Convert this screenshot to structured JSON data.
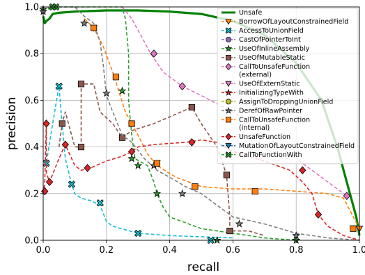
{
  "chart_data": {
    "type": "line",
    "xlabel": "recall",
    "ylabel": "precision",
    "xlim": [
      0,
      1
    ],
    "ylim": [
      0,
      1
    ],
    "x_ticks": [
      "0.0",
      "0.2",
      "0.4",
      "0.6",
      "0.8",
      "1.0"
    ],
    "y_ticks": [
      "0.0",
      "0.2",
      "0.4",
      "0.6",
      "0.8",
      "1.0"
    ],
    "grid": true,
    "legend_placement": "top-right",
    "series": [
      {
        "name": "Unsafe",
        "color": "#008000",
        "marker": "none",
        "dash": "solid",
        "points": [
          [
            0,
            0.96
          ],
          [
            0.005,
            0.93
          ],
          [
            0.01,
            0.94
          ],
          [
            0.02,
            0.95
          ],
          [
            0.03,
            0.97
          ],
          [
            0.05,
            0.975
          ],
          [
            0.1,
            0.98
          ],
          [
            0.2,
            0.985
          ],
          [
            0.3,
            0.985
          ],
          [
            0.4,
            0.98
          ],
          [
            0.5,
            0.97
          ],
          [
            0.6,
            0.94
          ],
          [
            0.7,
            0.88
          ],
          [
            0.8,
            0.76
          ],
          [
            0.88,
            0.6
          ],
          [
            0.93,
            0.4
          ],
          [
            0.96,
            0.25
          ],
          [
            0.98,
            0.15
          ],
          [
            0.99,
            0.1
          ],
          [
            1.0,
            0.02
          ]
        ]
      },
      {
        "name": "BorrowOfLayoutConstrainedField",
        "color": "#ff7f0e",
        "marker": "triangle-down",
        "dash": "dashed",
        "points": [
          [
            0.13,
            0.95
          ],
          [
            0.16,
            0.91
          ],
          [
            0.19,
            0.83
          ],
          [
            0.22,
            0.72
          ],
          [
            0.26,
            0.55
          ],
          [
            0.3,
            0.45
          ],
          [
            0.33,
            0.37
          ],
          [
            0.36,
            0.32
          ],
          [
            0.42,
            0.27
          ],
          [
            0.5,
            0.23
          ],
          [
            0.6,
            0.22
          ],
          [
            0.7,
            0.22
          ],
          [
            0.8,
            0.21
          ],
          [
            0.9,
            0.2
          ],
          [
            0.95,
            0.18
          ],
          [
            1.0,
            0.05
          ]
        ],
        "markers": [
          [
            0.16,
            0.91
          ],
          [
            0.36,
            0.33
          ],
          [
            1.0,
            0.05
          ]
        ]
      },
      {
        "name": "AccessToUnionField",
        "color": "#17becf",
        "marker": "x",
        "dash": "dashed",
        "points": [
          [
            0.0,
            0.32
          ],
          [
            0.01,
            0.33
          ],
          [
            0.03,
            0.5
          ],
          [
            0.05,
            0.66
          ],
          [
            0.06,
            0.5
          ],
          [
            0.07,
            0.35
          ],
          [
            0.09,
            0.24
          ],
          [
            0.1,
            0.2
          ],
          [
            0.12,
            0.18
          ],
          [
            0.15,
            0.17
          ],
          [
            0.18,
            0.15
          ],
          [
            0.2,
            0.08
          ],
          [
            0.22,
            0.06
          ],
          [
            0.3,
            0.03
          ],
          [
            0.4,
            0.02
          ],
          [
            0.6,
            0.01
          ]
        ],
        "markers": [
          [
            0.01,
            0.33
          ],
          [
            0.05,
            0.66
          ],
          [
            0.09,
            0.24
          ],
          [
            0.18,
            0.16
          ],
          [
            0.3,
            0.03
          ],
          [
            0.53,
            0.0
          ]
        ]
      },
      {
        "name": "CastOfPointerToInt",
        "color": "#9467bd",
        "marker": "circle",
        "dash": "dashed",
        "points": [],
        "markers": []
      },
      {
        "name": "UseOfInlineAssembly",
        "color": "#2ca02c",
        "marker": "star",
        "dash": "dashed",
        "points": [
          [
            0.0,
            0.98
          ],
          [
            0.03,
            1.0
          ],
          [
            0.1,
            1.0
          ],
          [
            0.2,
            1.0
          ],
          [
            0.25,
            1.0
          ],
          [
            0.26,
            0.95
          ],
          [
            0.27,
            0.8
          ],
          [
            0.27,
            0.6
          ],
          [
            0.28,
            0.45
          ],
          [
            0.29,
            0.35
          ],
          [
            0.33,
            0.32
          ],
          [
            0.35,
            0.25
          ],
          [
            0.36,
            0.2
          ],
          [
            0.38,
            0.14
          ],
          [
            0.4,
            0.1
          ],
          [
            0.5,
            0.05
          ],
          [
            0.7,
            0.01
          ],
          [
            0.8,
            0.0
          ]
        ],
        "markers": [
          [
            0.0,
            0.99
          ],
          [
            0.25,
            0.64
          ],
          [
            0.28,
            0.35
          ],
          [
            0.3,
            0.32
          ],
          [
            0.36,
            0.2
          ],
          [
            0.55,
            0.0
          ],
          [
            0.8,
            0.0
          ]
        ]
      },
      {
        "name": "UseOfMutableStatic",
        "color": "#8c564b",
        "marker": "square",
        "dash": "dashed",
        "points": [
          [
            0.05,
            0.4
          ],
          [
            0.06,
            0.5
          ],
          [
            0.07,
            0.55
          ],
          [
            0.1,
            0.4
          ],
          [
            0.12,
            0.4
          ],
          [
            0.12,
            0.67
          ],
          [
            0.16,
            0.67
          ],
          [
            0.18,
            0.55
          ],
          [
            0.22,
            0.5
          ],
          [
            0.25,
            0.44
          ],
          [
            0.28,
            0.47
          ],
          [
            0.35,
            0.5
          ],
          [
            0.47,
            0.57
          ],
          [
            0.5,
            0.5
          ],
          [
            0.55,
            0.4
          ],
          [
            0.58,
            0.28
          ],
          [
            0.59,
            0.1
          ],
          [
            0.59,
            0.04
          ],
          [
            0.65,
            0.04
          ],
          [
            0.7,
            0.02
          ]
        ],
        "markers": [
          [
            0.06,
            0.5
          ],
          [
            0.12,
            0.4
          ],
          [
            0.12,
            0.67
          ],
          [
            0.25,
            0.44
          ],
          [
            0.47,
            0.57
          ],
          [
            0.58,
            0.28
          ],
          [
            0.59,
            0.04
          ]
        ]
      },
      {
        "name": "CallToUnsafeFunction (external)",
        "color": "#e377c2",
        "marker": "diamond",
        "dash": "dashed",
        "points": [
          [
            0.25,
            1.0
          ],
          [
            0.28,
            0.95
          ],
          [
            0.32,
            0.85
          ],
          [
            0.34,
            0.8
          ],
          [
            0.38,
            0.72
          ],
          [
            0.44,
            0.66
          ],
          [
            0.5,
            0.62
          ],
          [
            0.6,
            0.55
          ],
          [
            0.7,
            0.45
          ],
          [
            0.8,
            0.35
          ],
          [
            0.9,
            0.25
          ],
          [
            0.96,
            0.19
          ]
        ],
        "markers": [
          [
            0.35,
            0.8
          ],
          [
            0.44,
            0.66
          ],
          [
            0.96,
            0.19
          ]
        ]
      },
      {
        "name": "UseOfExternStatic",
        "color": "#e377c2",
        "marker": "triangle-down-pink",
        "dash": "dashed",
        "points": [],
        "markers": []
      },
      {
        "name": "InitializingTypeWith",
        "color": "#d62728",
        "marker": "star-red",
        "dash": "dashed",
        "points": [],
        "markers": []
      },
      {
        "name": "AssignToDroppingUnionField",
        "color": "#bcbd22",
        "marker": "circle-yellow",
        "dash": "dashed",
        "points": [],
        "markers": []
      },
      {
        "name": "DerefOfRawPointer",
        "color": "#7f7f7f",
        "marker": "star",
        "dash": "dashed",
        "points": [
          [
            0.0,
            0.98
          ],
          [
            0.02,
            1.0
          ],
          [
            0.1,
            1.0
          ],
          [
            0.13,
            0.96
          ],
          [
            0.16,
            0.93
          ],
          [
            0.18,
            0.85
          ],
          [
            0.19,
            0.75
          ],
          [
            0.2,
            0.62
          ],
          [
            0.22,
            0.55
          ],
          [
            0.25,
            0.45
          ],
          [
            0.28,
            0.42
          ],
          [
            0.32,
            0.35
          ],
          [
            0.36,
            0.3
          ],
          [
            0.4,
            0.27
          ],
          [
            0.45,
            0.23
          ],
          [
            0.5,
            0.2
          ],
          [
            0.55,
            0.15
          ],
          [
            0.6,
            0.1
          ],
          [
            0.7,
            0.07
          ],
          [
            0.8,
            0.03
          ],
          [
            0.9,
            0.01
          ],
          [
            1.0,
            0.0
          ]
        ],
        "markers": [
          [
            0.0,
            0.98
          ],
          [
            0.13,
            0.93
          ],
          [
            0.2,
            0.63
          ],
          [
            0.35,
            0.32
          ],
          [
            0.44,
            0.2
          ],
          [
            0.62,
            0.07
          ],
          [
            0.8,
            0.02
          ]
        ]
      },
      {
        "name": "CallToUnsafeFunction (internal)",
        "color": "#ff7f0e",
        "marker": "square-orange",
        "dash": "dashed",
        "points": [],
        "markers": [
          [
            0.16,
            0.91
          ],
          [
            0.23,
            0.7
          ],
          [
            0.28,
            0.5
          ],
          [
            0.36,
            0.33
          ],
          [
            0.48,
            0.23
          ],
          [
            0.67,
            0.21
          ],
          [
            0.98,
            0.05
          ]
        ]
      },
      {
        "name": "UnsafeFunction",
        "color": "#d62728",
        "marker": "diamond-red",
        "dash": "dashed",
        "points": [
          [
            0.0,
            0.2
          ],
          [
            0.005,
            0.25
          ],
          [
            0.01,
            0.5
          ],
          [
            0.01,
            0.29
          ],
          [
            0.02,
            0.25
          ],
          [
            0.05,
            0.35
          ],
          [
            0.07,
            0.41
          ],
          [
            0.1,
            0.32
          ],
          [
            0.12,
            0.3
          ],
          [
            0.15,
            0.31
          ],
          [
            0.2,
            0.34
          ],
          [
            0.25,
            0.36
          ],
          [
            0.28,
            0.38
          ],
          [
            0.3,
            0.4
          ],
          [
            0.35,
            0.41
          ],
          [
            0.45,
            0.42
          ],
          [
            0.5,
            0.43
          ],
          [
            0.55,
            0.42
          ],
          [
            0.6,
            0.38
          ],
          [
            0.7,
            0.34
          ],
          [
            0.78,
            0.3
          ],
          [
            0.82,
            0.25
          ],
          [
            0.85,
            0.2
          ],
          [
            0.87,
            0.11
          ],
          [
            0.9,
            0.06
          ],
          [
            0.95,
            0.02
          ],
          [
            1.0,
            0.0
          ]
        ],
        "markers": [
          [
            0.005,
            0.21
          ],
          [
            0.01,
            0.5
          ],
          [
            0.02,
            0.25
          ],
          [
            0.07,
            0.41
          ],
          [
            0.14,
            0.31
          ],
          [
            0.28,
            0.38
          ],
          [
            0.47,
            0.42
          ],
          [
            0.82,
            0.3
          ],
          [
            0.87,
            0.11
          ]
        ]
      },
      {
        "name": "MutationOfLayoutConstrainedField",
        "color": "#1f77b4",
        "marker": "triangle-down-blue",
        "dash": "dashed",
        "points": [],
        "markers": []
      },
      {
        "name": "CallToFunctionWith",
        "color": "#2ca02c",
        "marker": "x-green",
        "dash": "dashed",
        "points": [],
        "markers": [
          [
            0.04,
            1.0
          ],
          [
            0.03,
            1.0
          ]
        ]
      }
    ]
  }
}
